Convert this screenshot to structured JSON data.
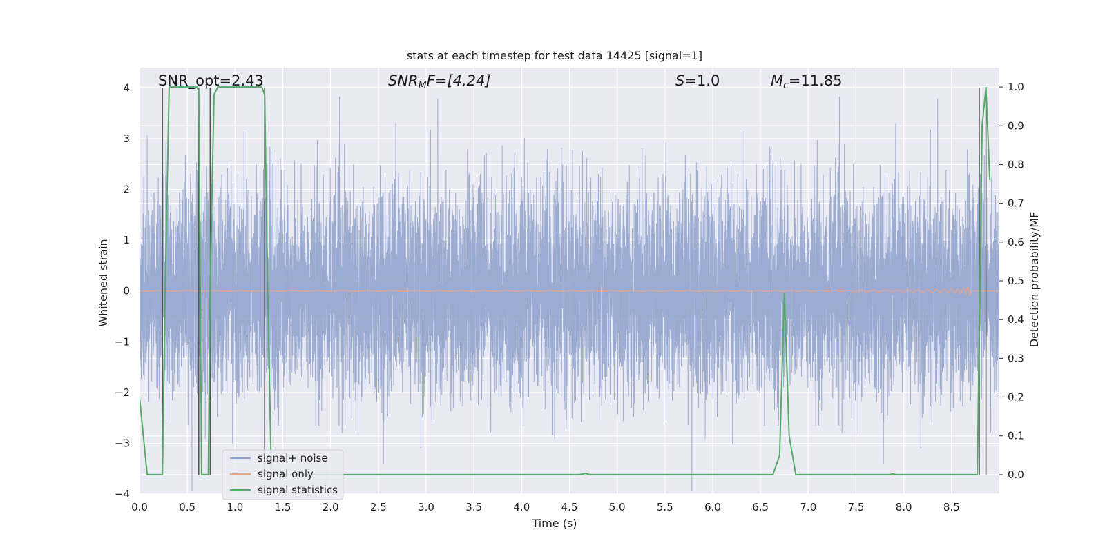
{
  "chart_data": {
    "type": "line",
    "title": "stats at each timestep for test data 14425 [signal=1]",
    "xlabel": "Time (s)",
    "ylabel_left": "Whitened strain",
    "ylabel_right": "Detection probability/MF",
    "xlim": [
      0,
      9
    ],
    "ylim_left": [
      -4,
      4.4
    ],
    "ylim_right": [
      -0.05,
      1.05
    ],
    "x_ticks": [
      "0.0",
      "0.5",
      "1.0",
      "1.5",
      "2.0",
      "2.5",
      "3.0",
      "3.5",
      "4.0",
      "4.5",
      "5.0",
      "5.5",
      "6.0",
      "6.5",
      "7.0",
      "7.5",
      "8.0",
      "8.5"
    ],
    "y_ticks_left": [
      "4",
      "3",
      "2",
      "1",
      "0",
      "−1",
      "−2",
      "−3",
      "−4"
    ],
    "y_ticks_right": [
      "1.0",
      "0.9",
      "0.8",
      "0.7",
      "0.6",
      "0.5",
      "0.4",
      "0.3",
      "0.2",
      "0.1",
      "0.0"
    ],
    "grid": true,
    "legend_position": "lower-left",
    "annotations": {
      "snr_opt": "SNR_opt=2.43",
      "snr_mf_prefix": "SNR",
      "snr_mf_sub": "M",
      "snr_mf_suffix": "F=[4.24]",
      "s_name": "S",
      "s_value": "=1.0",
      "mc_name": "M",
      "mc_sub": "c",
      "mc_value": "=11.85"
    },
    "series": [
      {
        "name": "signal+ noise",
        "color": "#8da0cb",
        "role": "noisy strain, std ≈ 1, peaks up to ±4"
      },
      {
        "name": "signal only",
        "color": "#e5a48d",
        "role": "chirp growing to ±0.45 near 8.7 s"
      },
      {
        "name": "signal statistics",
        "color": "#55a868",
        "x": [
          0,
          0.08,
          0.24,
          0.27,
          0.31,
          0.6,
          0.62,
          0.65,
          0.72,
          0.74,
          0.78,
          0.82,
          1.28,
          1.31,
          1.34,
          1.38,
          4.6,
          4.67,
          4.72,
          6.63,
          6.7,
          6.75,
          6.8,
          6.87,
          7.85,
          7.88,
          7.92,
          8.77,
          8.82,
          8.86,
          8.9
        ],
        "y": [
          0.2,
          0.0,
          0.0,
          0.5,
          1.0,
          1.0,
          0.99,
          0.0,
          0.0,
          0.5,
          0.98,
          1.0,
          1.0,
          0.98,
          0.5,
          0.0,
          0.0,
          0.003,
          0.0,
          0.0,
          0.05,
          0.47,
          0.1,
          0.0,
          0.0,
          0.002,
          0.0,
          0.0,
          0.9,
          1.0,
          0.76
        ]
      },
      {
        "name": "",
        "color": "#555555",
        "role": "vertical markers",
        "x": [
          0.24,
          0.62,
          0.74,
          1.31,
          8.79,
          8.86
        ]
      }
    ]
  },
  "legend": {
    "items": [
      {
        "label": "signal+ noise",
        "color": "#8da0cb"
      },
      {
        "label": "signal only",
        "color": "#e5a48d"
      },
      {
        "label": "signal statistics",
        "color": "#55a868"
      }
    ]
  },
  "colors": {
    "plot_bg": "#eaeaf2",
    "grid": "#ffffff",
    "text": "#222222"
  }
}
